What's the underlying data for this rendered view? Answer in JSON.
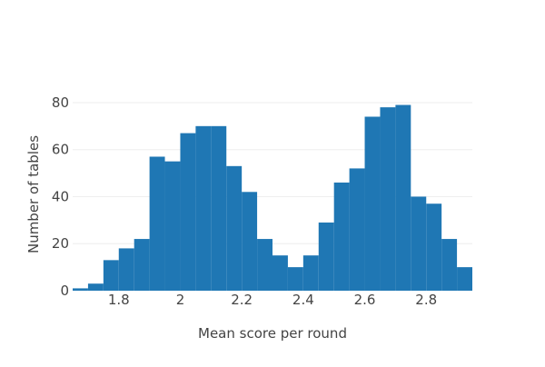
{
  "chart_data": {
    "type": "bar",
    "subtype": "histogram",
    "xlabel": "Mean score per round",
    "ylabel": "Number of tables",
    "title": "",
    "bin_width": 0.05,
    "xlim": [
      1.65,
      2.95
    ],
    "ylim": [
      0,
      85
    ],
    "x_ticks": [
      {
        "value": 1.8,
        "label": "1.8"
      },
      {
        "value": 2.0,
        "label": "2"
      },
      {
        "value": 2.2,
        "label": "2.2"
      },
      {
        "value": 2.4,
        "label": "2.4"
      },
      {
        "value": 2.6,
        "label": "2.6"
      },
      {
        "value": 2.8,
        "label": "2.8"
      }
    ],
    "y_ticks": [
      {
        "value": 0,
        "label": "0"
      },
      {
        "value": 20,
        "label": "20"
      },
      {
        "value": 40,
        "label": "40"
      },
      {
        "value": 60,
        "label": "60"
      },
      {
        "value": 80,
        "label": "80"
      }
    ],
    "grid": true,
    "bar_color": "#1f77b4",
    "grid_color": "#eeeeee",
    "bins": [
      {
        "start": 1.65,
        "count": 1
      },
      {
        "start": 1.7,
        "count": 3
      },
      {
        "start": 1.75,
        "count": 13
      },
      {
        "start": 1.8,
        "count": 18
      },
      {
        "start": 1.85,
        "count": 22
      },
      {
        "start": 1.9,
        "count": 57
      },
      {
        "start": 1.95,
        "count": 55
      },
      {
        "start": 2.0,
        "count": 67
      },
      {
        "start": 2.05,
        "count": 70
      },
      {
        "start": 2.1,
        "count": 70
      },
      {
        "start": 2.15,
        "count": 53
      },
      {
        "start": 2.2,
        "count": 42
      },
      {
        "start": 2.25,
        "count": 22
      },
      {
        "start": 2.3,
        "count": 15
      },
      {
        "start": 2.35,
        "count": 10
      },
      {
        "start": 2.4,
        "count": 15
      },
      {
        "start": 2.45,
        "count": 29
      },
      {
        "start": 2.5,
        "count": 46
      },
      {
        "start": 2.55,
        "count": 52
      },
      {
        "start": 2.6,
        "count": 74
      },
      {
        "start": 2.65,
        "count": 78
      },
      {
        "start": 2.7,
        "count": 79
      },
      {
        "start": 2.75,
        "count": 40
      },
      {
        "start": 2.8,
        "count": 37
      },
      {
        "start": 2.85,
        "count": 22
      },
      {
        "start": 2.9,
        "count": 10
      }
    ]
  }
}
